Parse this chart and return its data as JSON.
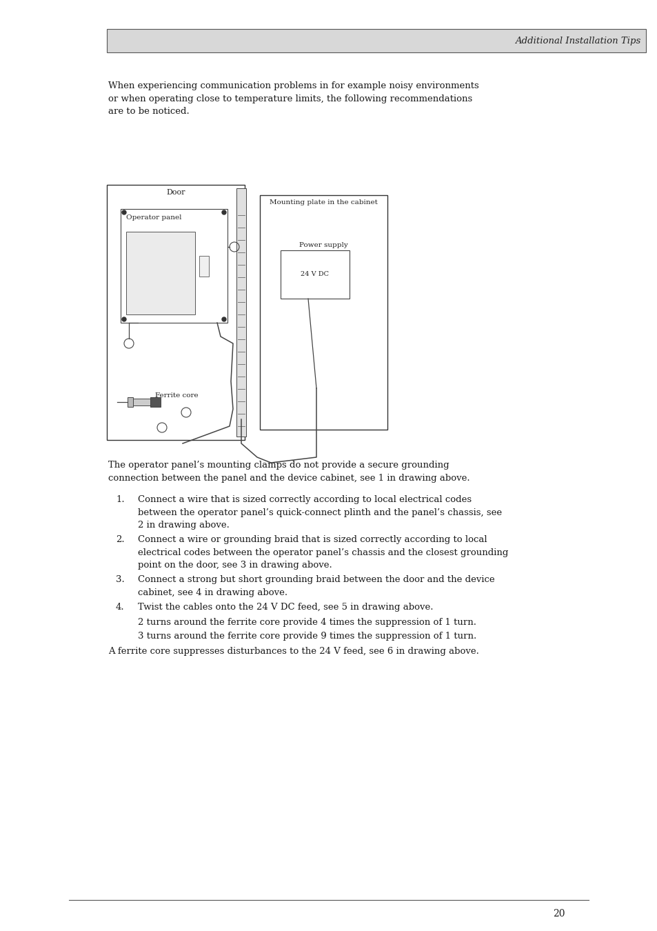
{
  "header_text": "Additional Installation Tips",
  "header_bg": "#d8d8d8",
  "header_border": "#555555",
  "page_bg": "#ffffff",
  "page_number": "20",
  "intro_text": "When experiencing communication problems in for example noisy environments\nor when operating close to temperature limits, the following recommendations\nare to be noticed.",
  "body_text_intro": "The operator panel’s mounting clamps do not provide a secure grounding\nconnection between the panel and the device cabinet, see 1 in drawing above.",
  "list_items": [
    "Connect a wire that is sized correctly according to local electrical codes\nbetween the operator panel’s quick-connect plinth and the panel’s chassis, see\n2 in drawing above.",
    "Connect a wire or grounding braid that is sized correctly according to local\nelectrical codes between the operator panel’s chassis and the closest grounding\npoint on the door, see 3 in drawing above.",
    "Connect a strong but short grounding braid between the door and the device\ncabinet, see 4 in drawing above.",
    "Twist the cables onto the 24 V DC feed, see 5 in drawing above."
  ],
  "sub_items": [
    "2 turns around the ferrite core provide 4 times the suppression of 1 turn.",
    "3 turns around the ferrite core provide 9 times the suppression of 1 turn."
  ],
  "footer_text": "A ferrite core suppresses disturbances to the 24 V feed, see 6 in drawing above.",
  "diagram_labels": {
    "door": "Door",
    "mounting_plate": "Mounting plate in the cabinet",
    "operator_panel": "Operator panel",
    "power_supply": "Power supply",
    "ferrite_core": "Ferrite core",
    "voltage": "24 V DC"
  }
}
